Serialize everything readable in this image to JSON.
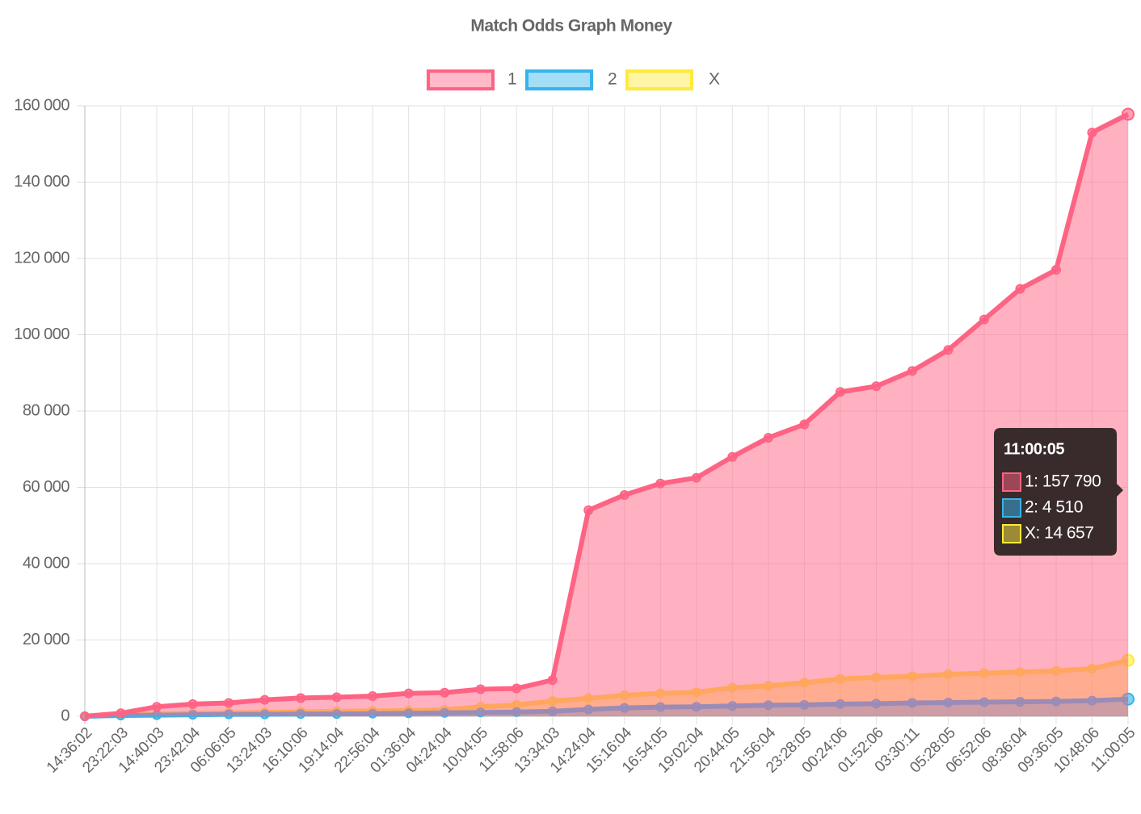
{
  "chart_data": {
    "type": "line",
    "title": "Match Odds Graph Money",
    "categories": [
      "14:36:02",
      "23:22:03",
      "14:40:03",
      "23:42:04",
      "06:06:05",
      "13:24:03",
      "16:10:06",
      "19:14:04",
      "22:56:04",
      "01:36:04",
      "04:24:04",
      "10:04:05",
      "11:58:06",
      "13:34:03",
      "14:24:04",
      "15:16:04",
      "16:54:05",
      "19:02:04",
      "20:44:05",
      "21:56:04",
      "23:28:05",
      "00:24:06",
      "01:52:06",
      "03:30:11",
      "05:28:05",
      "06:52:06",
      "08:36:04",
      "09:36:05",
      "10:48:06",
      "11:00:05"
    ],
    "series": [
      {
        "name": "1",
        "color": "#ff6384",
        "values": [
          0,
          800,
          2500,
          3200,
          3500,
          4300,
          4800,
          5000,
          5300,
          6000,
          6200,
          7100,
          7300,
          9500,
          54000,
          58000,
          61000,
          62500,
          68000,
          73000,
          76500,
          85000,
          86500,
          90500,
          96000,
          104000,
          112000,
          117000,
          153000,
          157790
        ]
      },
      {
        "name": "2",
        "color": "#36b4eb",
        "values": [
          0,
          200,
          300,
          400,
          500,
          500,
          600,
          600,
          700,
          800,
          900,
          1000,
          1100,
          1300,
          1800,
          2200,
          2400,
          2500,
          2700,
          2900,
          3000,
          3200,
          3300,
          3500,
          3600,
          3700,
          3800,
          3900,
          4100,
          4510
        ]
      },
      {
        "name": "X",
        "color": "#ffe93b",
        "values": [
          0,
          300,
          600,
          800,
          900,
          1000,
          1200,
          1300,
          1400,
          1500,
          1700,
          2500,
          3000,
          4000,
          4700,
          5500,
          6000,
          6300,
          7500,
          8000,
          8800,
          9800,
          10200,
          10500,
          11000,
          11300,
          11600,
          11900,
          12500,
          14657
        ]
      }
    ],
    "ylim": [
      0,
      160000
    ],
    "yticks": [
      {
        "value": 0,
        "label": "0"
      },
      {
        "value": 20000,
        "label": "20 000"
      },
      {
        "value": 40000,
        "label": "40 000"
      },
      {
        "value": 60000,
        "label": "60 000"
      },
      {
        "value": 80000,
        "label": "80 000"
      },
      {
        "value": 100000,
        "label": "100 000"
      },
      {
        "value": 120000,
        "label": "120 000"
      },
      {
        "value": 140000,
        "label": "140 000"
      },
      {
        "value": 160000,
        "label": "160 000"
      }
    ],
    "grid": true,
    "legend": "top",
    "tooltip": {
      "title": "11:00:05",
      "items": [
        "1: 157 790",
        "2: 4 510",
        "X: 14 657"
      ]
    }
  }
}
